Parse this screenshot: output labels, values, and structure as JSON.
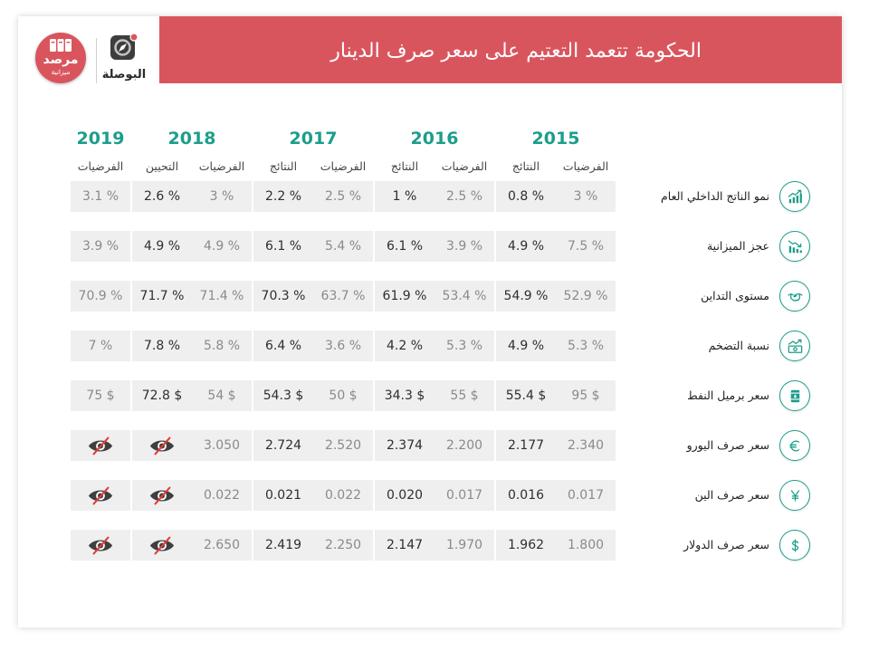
{
  "header": {
    "title": "الحكومة تتعمد التعتيم على سعر صرف الدينار",
    "logos": {
      "marsad": {
        "name": "مرصد",
        "subtitle": "ميزانية"
      },
      "albawsala": {
        "name": "البوصلة"
      }
    }
  },
  "colors": {
    "header_red": "#d9555e",
    "teal": "#1c9e8b",
    "cell_bg": "#efefef",
    "hypothesis_text": "#8a8a8a",
    "result_text": "#2e2e2e",
    "eye_gray": "#3f3f3f",
    "slash_red": "#e23b3b"
  },
  "chart_data": {
    "type": "table",
    "hidden_value_icon": "eye-slash-icon",
    "years": [
      {
        "year": "2015",
        "columns": [
          "الفرضيات",
          "النتائج"
        ]
      },
      {
        "year": "2016",
        "columns": [
          "الفرضيات",
          "النتائج"
        ]
      },
      {
        "year": "2017",
        "columns": [
          "الفرضيات",
          "النتائج"
        ]
      },
      {
        "year": "2018",
        "columns": [
          "الفرضيات",
          "التحيين"
        ]
      },
      {
        "year": "2019",
        "columns": [
          "الفرضيات"
        ]
      }
    ],
    "rows": [
      {
        "label": "نمو الناتج الداخلي العام",
        "icon": "growth-chart-icon",
        "values": [
          [
            "3 %",
            "0.8 %"
          ],
          [
            "2.5 %",
            "1 %"
          ],
          [
            "2.5 %",
            "2.2 %"
          ],
          [
            "3 %",
            "2.6 %"
          ],
          [
            "3.1 %"
          ]
        ]
      },
      {
        "label": "عجز الميزانية",
        "icon": "deficit-chart-icon",
        "values": [
          [
            "7.5 %",
            "4.9 %"
          ],
          [
            "3.9 %",
            "6.1 %"
          ],
          [
            "5.4 %",
            "6.1 %"
          ],
          [
            "4.9 %",
            "4.9 %"
          ],
          [
            "3.9 %"
          ]
        ]
      },
      {
        "label": "مستوى التداين",
        "icon": "debt-handshake-icon",
        "values": [
          [
            "52.9 %",
            "54.9 %"
          ],
          [
            "53.4 %",
            "61.9 %"
          ],
          [
            "63.7 %",
            "70.3 %"
          ],
          [
            "71.4 %",
            "71.7 %"
          ],
          [
            "70.9 %"
          ]
        ]
      },
      {
        "label": "نسبة التضخم",
        "icon": "inflation-icon",
        "values": [
          [
            "5.3 %",
            "4.9 %"
          ],
          [
            "5.3 %",
            "4.2 %"
          ],
          [
            "3.6 %",
            "6.4 %"
          ],
          [
            "5.8 %",
            "7.8 %"
          ],
          [
            "7 %"
          ]
        ]
      },
      {
        "label": "سعر برميل النفط",
        "icon": "oil-barrel-icon",
        "values": [
          [
            "95 $",
            "55.4 $"
          ],
          [
            "55 $",
            "34.3 $"
          ],
          [
            "50 $",
            "54.3 $"
          ],
          [
            "54 $",
            "72.8 $"
          ],
          [
            "75 $"
          ]
        ]
      },
      {
        "label": "سعر صرف اليورو",
        "icon": "euro-icon",
        "values": [
          [
            "2.340",
            "2.177"
          ],
          [
            "2.200",
            "2.374"
          ],
          [
            "2.520",
            "2.724"
          ],
          [
            "3.050",
            null
          ],
          [
            null
          ]
        ]
      },
      {
        "label": "سعر صرف الين",
        "icon": "yen-icon",
        "values": [
          [
            "0.017",
            "0.016"
          ],
          [
            "0.017",
            "0.020"
          ],
          [
            "0.022",
            "0.021"
          ],
          [
            "0.022",
            null
          ],
          [
            null
          ]
        ]
      },
      {
        "label": "سعر صرف الدولار",
        "icon": "dollar-icon",
        "values": [
          [
            "1.800",
            "1.962"
          ],
          [
            "1.970",
            "2.147"
          ],
          [
            "2.250",
            "2.419"
          ],
          [
            "2.650",
            null
          ],
          [
            null
          ]
        ]
      }
    ]
  }
}
